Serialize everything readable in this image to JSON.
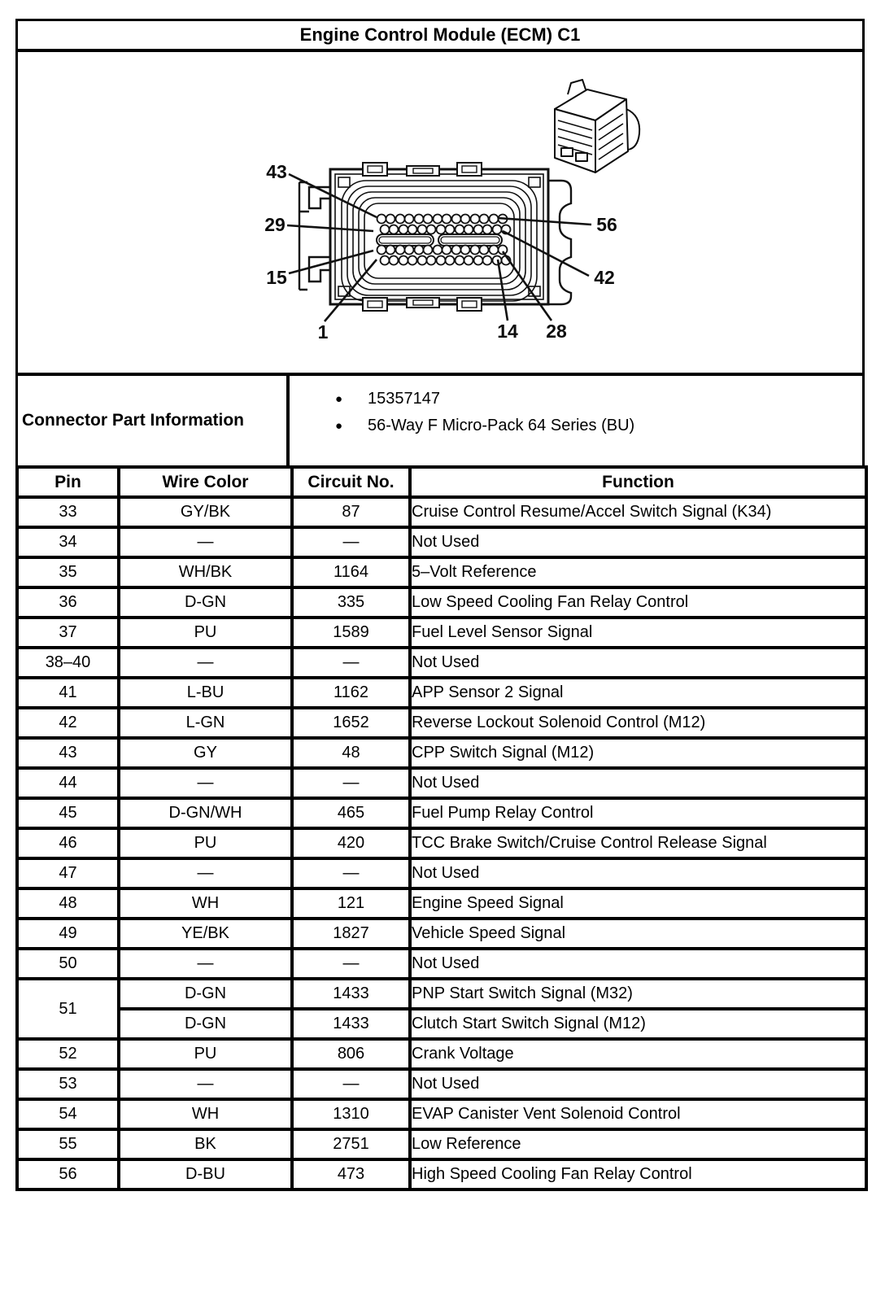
{
  "title": "Engine Control Module (ECM) C1",
  "connector_part_info": {
    "label": "Connector Part Information",
    "items": [
      "15357147",
      "56-Way F Micro-Pack 64 Series (BU)"
    ]
  },
  "diagram": {
    "callouts": [
      "43",
      "29",
      "15",
      "1",
      "14",
      "28",
      "56",
      "42"
    ]
  },
  "pin_table": {
    "headers": [
      "Pin",
      "Wire Color",
      "Circuit No.",
      "Function"
    ],
    "rows": [
      {
        "pin": "33",
        "wire": "GY/BK",
        "circuit": "87",
        "fn": "Cruise Control Resume/Accel Switch Signal (K34)"
      },
      {
        "pin": "34",
        "wire": "—",
        "circuit": "—",
        "fn": "Not Used"
      },
      {
        "pin": "35",
        "wire": "WH/BK",
        "circuit": "1164",
        "fn": "5–Volt Reference"
      },
      {
        "pin": "36",
        "wire": "D-GN",
        "circuit": "335",
        "fn": "Low Speed Cooling Fan Relay Control"
      },
      {
        "pin": "37",
        "wire": "PU",
        "circuit": "1589",
        "fn": "Fuel Level Sensor Signal"
      },
      {
        "pin": "38–40",
        "wire": "—",
        "circuit": "—",
        "fn": "Not Used"
      },
      {
        "pin": "41",
        "wire": "L-BU",
        "circuit": "1162",
        "fn": "APP Sensor 2 Signal"
      },
      {
        "pin": "42",
        "wire": "L-GN",
        "circuit": "1652",
        "fn": "Reverse Lockout Solenoid Control (M12)"
      },
      {
        "pin": "43",
        "wire": "GY",
        "circuit": "48",
        "fn": "CPP Switch Signal (M12)"
      },
      {
        "pin": "44",
        "wire": "—",
        "circuit": "—",
        "fn": "Not Used"
      },
      {
        "pin": "45",
        "wire": "D-GN/WH",
        "circuit": "465",
        "fn": "Fuel Pump Relay Control"
      },
      {
        "pin": "46",
        "wire": "PU",
        "circuit": "420",
        "fn": "TCC Brake Switch/Cruise Control Release Signal"
      },
      {
        "pin": "47",
        "wire": "—",
        "circuit": "—",
        "fn": "Not Used"
      },
      {
        "pin": "48",
        "wire": "WH",
        "circuit": "121",
        "fn": "Engine Speed Signal"
      },
      {
        "pin": "49",
        "wire": "YE/BK",
        "circuit": "1827",
        "fn": "Vehicle Speed Signal"
      },
      {
        "pin": "50",
        "wire": "—",
        "circuit": "—",
        "fn": "Not Used"
      },
      {
        "pin": "51",
        "pin_rowspan": 2,
        "wire": "D-GN",
        "circuit": "1433",
        "fn": "PNP Start Switch Signal (M32)"
      },
      {
        "pin": null,
        "wire": "D-GN",
        "circuit": "1433",
        "fn": "Clutch Start Switch Signal (M12)"
      },
      {
        "pin": "52",
        "wire": "PU",
        "circuit": "806",
        "fn": "Crank Voltage"
      },
      {
        "pin": "53",
        "wire": "—",
        "circuit": "—",
        "fn": "Not Used"
      },
      {
        "pin": "54",
        "wire": "WH",
        "circuit": "1310",
        "fn": "EVAP Canister Vent Solenoid Control"
      },
      {
        "pin": "55",
        "wire": "BK",
        "circuit": "2751",
        "fn": "Low Reference"
      },
      {
        "pin": "56",
        "wire": "D-BU",
        "circuit": "473",
        "fn": "High Speed Cooling Fan Relay Control"
      }
    ]
  },
  "colors": {
    "ink": "#0d0d0d",
    "paper": "#ffffff"
  }
}
